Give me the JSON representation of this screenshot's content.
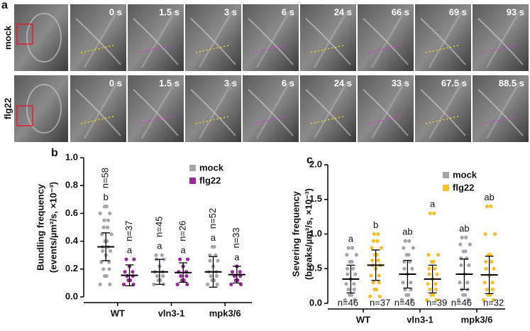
{
  "panel_a": {
    "label": "a",
    "rows": [
      {
        "name": "mock",
        "times": [
          "0 s",
          "1.5 s",
          "3 s",
          "6 s",
          "24 s",
          "66 s",
          "69 s",
          "93 s"
        ]
      },
      {
        "name": "flg22",
        "times": [
          "0 s",
          "1.5 s",
          "3 s",
          "6 s",
          "24 s",
          "33 s",
          "67.5 s",
          "88.5 s"
        ]
      }
    ]
  },
  "chart_data": [
    {
      "type": "dot",
      "panel_label": "b",
      "ylabel": [
        "Bundling frequency",
        "(events/µm²/s, ×10⁻³)"
      ],
      "categories": [
        "WT",
        "vln3-1",
        "mpk3/6"
      ],
      "ylim": [
        0,
        1
      ],
      "yticks": [
        {
          "value": 0,
          "label": "0.0"
        },
        0.2,
        0.4,
        0.6,
        0.8,
        {
          "value": 1,
          "label": "1.0"
        }
      ],
      "n_label_position": "above",
      "series": [
        {
          "name": "mock",
          "color": "#a6a6a6",
          "mean": [
            0.36,
            0.18,
            0.18
          ],
          "sd": [
            0.1,
            0.09,
            0.11
          ],
          "points": [
            [
              0.09,
              0.15,
              0.2,
              0.25,
              0.3,
              0.33,
              0.36,
              0.4,
              0.45,
              0.5,
              0.55,
              0.6,
              0.65
            ],
            [
              0.09,
              0.12,
              0.15,
              0.18,
              0.22,
              0.27,
              0.3
            ],
            [
              0.09,
              0.12,
              0.15,
              0.18,
              0.22,
              0.26,
              0.3,
              0.36
            ]
          ],
          "n_labels": [
            "n=58",
            "n=45",
            "n=52"
          ],
          "letters": [
            "b",
            "a",
            "a"
          ]
        },
        {
          "name": "flg22",
          "color": "#9b2a9b",
          "mean": [
            0.155,
            0.175,
            0.16
          ],
          "sd": [
            0.075,
            0.07,
            0.06
          ],
          "points": [
            [
              0.09,
              0.12,
              0.15,
              0.18,
              0.22,
              0.27
            ],
            [
              0.09,
              0.12,
              0.15,
              0.18,
              0.22,
              0.27
            ],
            [
              0.09,
              0.12,
              0.15,
              0.18,
              0.22
            ]
          ],
          "n_labels": [
            "n=37",
            "n=26",
            "n=33"
          ],
          "letters": [
            "a",
            "a",
            "a"
          ]
        }
      ]
    },
    {
      "type": "dot",
      "panel_label": "c",
      "ylabel": [
        "Severing frequency",
        "(breaks/µm²/s, ×10⁻³)"
      ],
      "categories": [
        "WT",
        "vln3-1",
        "mpk3/6"
      ],
      "ylim": [
        0,
        2
      ],
      "yticks": [
        {
          "value": 0,
          "label": "0.0"
        },
        0.5,
        {
          "value": 1,
          "label": "1.0"
        },
        1.5,
        {
          "value": 2,
          "label": "2.0"
        }
      ],
      "n_label_position": "below",
      "series": [
        {
          "name": "mock",
          "color": "#a6a6a6",
          "mean": [
            0.35,
            0.42,
            0.42
          ],
          "sd": [
            0.2,
            0.2,
            0.22
          ],
          "points": [
            [
              0.05,
              0.12,
              0.2,
              0.28,
              0.35,
              0.42,
              0.5,
              0.6,
              0.7,
              0.8
            ],
            [
              0.05,
              0.12,
              0.2,
              0.3,
              0.42,
              0.5,
              0.6,
              0.7,
              0.8,
              0.9
            ],
            [
              0.05,
              0.12,
              0.2,
              0.3,
              0.42,
              0.55,
              0.65,
              0.75,
              0.85,
              0.95
            ]
          ],
          "n_labels": [
            "n=46",
            "n=46",
            "n=46"
          ],
          "letters": [
            "a",
            "ab",
            "ab"
          ]
        },
        {
          "name": "flg22",
          "color": "#f5c02a",
          "mean": [
            0.55,
            0.35,
            0.41
          ],
          "sd": [
            0.22,
            0.2,
            0.27
          ],
          "points": [
            [
              0.1,
              0.2,
              0.3,
              0.4,
              0.5,
              0.55,
              0.62,
              0.7,
              0.8,
              0.9,
              1.0
            ],
            [
              0.05,
              0.12,
              0.2,
              0.28,
              0.35,
              0.42,
              0.5,
              0.6,
              0.7,
              1.3
            ],
            [
              0.05,
              0.12,
              0.2,
              0.3,
              0.4,
              0.5,
              0.6,
              0.7,
              1.0,
              1.4
            ]
          ],
          "n_labels": [
            "n=37",
            "n=39",
            "n=32"
          ],
          "letters": [
            "b",
            "a",
            "ab"
          ]
        }
      ]
    }
  ]
}
